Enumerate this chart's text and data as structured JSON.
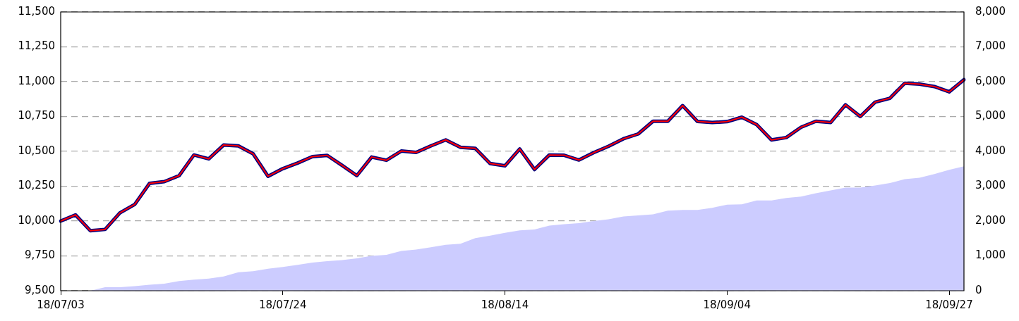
{
  "chart_data": {
    "type": "line",
    "categories": [
      "18/07/03",
      null,
      null,
      null,
      null,
      null,
      null,
      null,
      null,
      null,
      null,
      null,
      null,
      null,
      null,
      "18/07/24",
      null,
      null,
      null,
      null,
      null,
      null,
      null,
      null,
      null,
      null,
      null,
      null,
      null,
      null,
      "18/08/14",
      null,
      null,
      null,
      null,
      null,
      null,
      null,
      null,
      null,
      null,
      null,
      null,
      null,
      null,
      "18/09/04",
      null,
      null,
      null,
      null,
      null,
      null,
      null,
      null,
      null,
      null,
      null,
      null,
      null,
      null,
      "18/09/27",
      null
    ],
    "series": [
      {
        "type": "area",
        "axis": "y2",
        "color": "#ccccff",
        "values": [
          0,
          0,
          0,
          100,
          100,
          130,
          170,
          200,
          280,
          320,
          350,
          410,
          530,
          560,
          630,
          680,
          740,
          810,
          850,
          880,
          930,
          1000,
          1030,
          1140,
          1180,
          1250,
          1320,
          1350,
          1510,
          1580,
          1660,
          1730,
          1760,
          1870,
          1910,
          1940,
          2000,
          2050,
          2130,
          2160,
          2190,
          2300,
          2320,
          2320,
          2380,
          2470,
          2480,
          2590,
          2590,
          2660,
          2700,
          2800,
          2880,
          2960,
          2960,
          3020,
          3090,
          3200,
          3240,
          3350,
          3470,
          3570
        ]
      },
      {
        "color": "#000080",
        "values": [
          10000,
          10044,
          9931,
          9940,
          10059,
          10119,
          10270,
          10283,
          10326,
          10474,
          10446,
          10545,
          10539,
          10482,
          10321,
          10376,
          10416,
          10462,
          10471,
          10400,
          10326,
          10459,
          10436,
          10502,
          10492,
          10539,
          10582,
          10529,
          10521,
          10413,
          10396,
          10517,
          10370,
          10474,
          10472,
          10438,
          10491,
          10537,
          10590,
          10625,
          10716,
          10716,
          10828,
          10715,
          10707,
          10713,
          10745,
          10692,
          10582,
          10599,
          10673,
          10716,
          10707,
          10834,
          10750,
          10853,
          10881,
          10989,
          10982,
          10965,
          10927,
          11014
        ]
      },
      {
        "color": "#ff0000",
        "values": [
          10000,
          10044,
          9931,
          9940,
          10059,
          10119,
          10270,
          10283,
          10326,
          10474,
          10446,
          10545,
          10539,
          10482,
          10321,
          10376,
          10416,
          10462,
          10471,
          10400,
          10326,
          10459,
          10436,
          10502,
          10492,
          10539,
          10582,
          10529,
          10521,
          10413,
          10396,
          10517,
          10370,
          10474,
          10472,
          10438,
          10491,
          10537,
          10590,
          10625,
          10716,
          10716,
          10828,
          10715,
          10707,
          10713,
          10745,
          10692,
          10582,
          10599,
          10673,
          10716,
          10707,
          10834,
          10750,
          10853,
          10881,
          10989,
          10982,
          10965,
          10927,
          11014
        ]
      }
    ],
    "ylim": [
      9500,
      11500
    ],
    "yticks": [
      {
        "value": 9500,
        "label": "9,500"
      },
      {
        "value": 9750,
        "label": "9,750"
      },
      {
        "value": 10000,
        "label": "10,000"
      },
      {
        "value": 10250,
        "label": "10,250"
      },
      {
        "value": 10500,
        "label": "10,500"
      },
      {
        "value": 10750,
        "label": "10,750"
      },
      {
        "value": 11000,
        "label": "11,000"
      },
      {
        "value": 11250,
        "label": "11,250"
      },
      {
        "value": 11500,
        "label": "11,500"
      }
    ],
    "y2lim": [
      0,
      8000
    ],
    "y2ticks": [
      0,
      {
        "value": 1000,
        "label": "1,000"
      },
      {
        "value": 2000,
        "label": "2,000"
      },
      {
        "value": 3000,
        "label": "3,000"
      },
      {
        "value": 4000,
        "label": "4,000"
      },
      {
        "value": 5000,
        "label": "5,000"
      },
      {
        "value": 6000,
        "label": "6,000"
      },
      {
        "value": 7000,
        "label": "7,000"
      },
      {
        "value": 8000,
        "label": "8,000"
      }
    ],
    "grid": "y",
    "marker": "none"
  }
}
